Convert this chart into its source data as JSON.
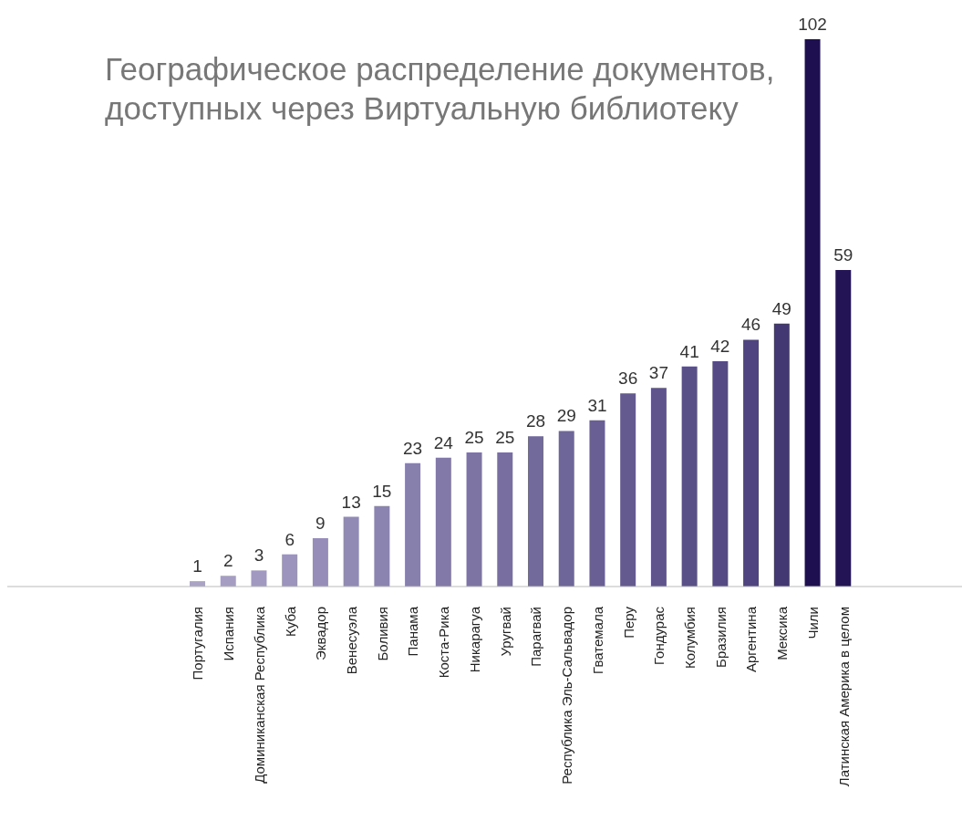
{
  "chart_data": {
    "type": "bar",
    "title": "Географическое распределение документов,\nдоступных через Виртуальную библиотеку",
    "categories": [
      "Португалия",
      "Испания",
      "Доминиканская Республика",
      "Куба",
      "Эквадор",
      "Венесуэла",
      "Боливия",
      "Панама",
      "Коста-Рика",
      "Никарагуа",
      "Уругвай",
      "Парагвай",
      "Республика Эль-Сальвадор",
      "Гватемала",
      "Перу",
      "Гондурас",
      "Колумбия",
      "Бразилия",
      "Аргентина",
      "Мексика",
      "Чили",
      "Латинская Америка в целом"
    ],
    "values": [
      1,
      2,
      3,
      6,
      9,
      13,
      15,
      23,
      24,
      25,
      25,
      28,
      29,
      31,
      36,
      37,
      41,
      42,
      46,
      49,
      102,
      59
    ],
    "colors": [
      "#aaa3c6",
      "#a59ec2",
      "#a199bf",
      "#9c94bc",
      "#968eb8",
      "#918ab4",
      "#8c84b0",
      "#877fac",
      "#8279a8",
      "#7d74a4",
      "#786fa0",
      "#736a9c",
      "#6e6598",
      "#695f94",
      "#645a90",
      "#5f558c",
      "#5a5088",
      "#554a84",
      "#4f4480",
      "#443873",
      "#1e0f50",
      "#231456"
    ],
    "data_labels": true,
    "grid": false,
    "legend": false
  }
}
